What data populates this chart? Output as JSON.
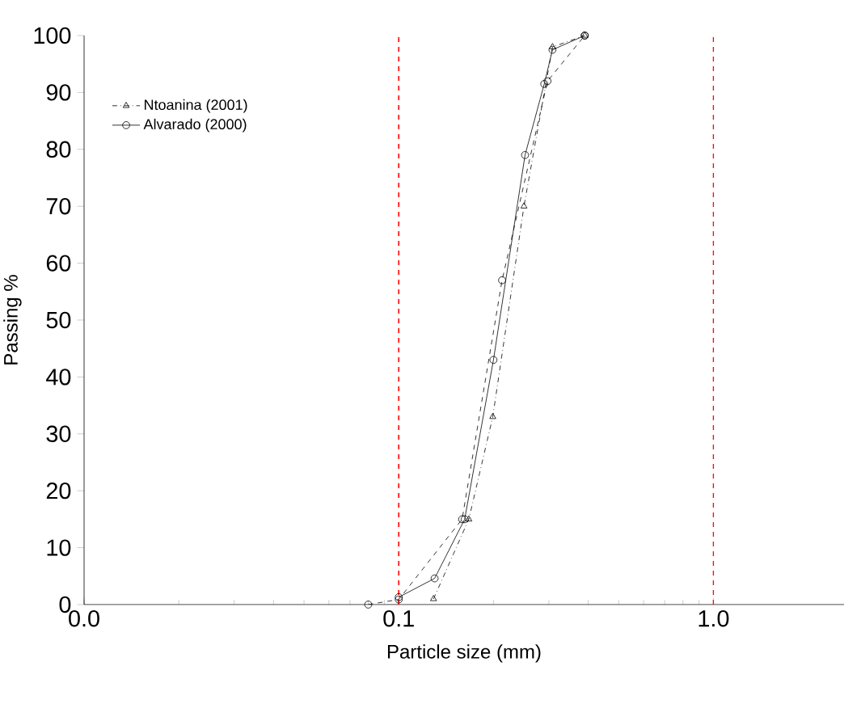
{
  "chart_data": {
    "type": "line",
    "xlabel": "Particle size (mm)",
    "ylabel": "Passing %",
    "log": "x",
    "xlim": [
      0.01,
      2.6
    ],
    "xticks": [
      {
        "value": 0.01,
        "label": "0.0"
      },
      {
        "value": 0.1,
        "label": "0.1"
      },
      {
        "value": 1,
        "label": "1.0"
      }
    ],
    "ylim": [
      0,
      100
    ],
    "yticks": [
      0,
      10,
      20,
      30,
      40,
      50,
      60,
      70,
      80,
      90,
      100
    ],
    "grid": false,
    "legend": "top left",
    "series": [
      {
        "name": "Ntoanina (2001)",
        "color": "#000000",
        "marker": "triangle",
        "line_style": "dashdot",
        "x": [
          0.129,
          0.167,
          0.199,
          0.25,
          0.308,
          0.39
        ],
        "values": [
          1,
          15,
          33,
          70,
          98,
          100
        ]
      },
      {
        "name": "Alvarado (2000)",
        "color": "#000000",
        "marker": "circle",
        "line_style": "solid",
        "x": [
          0.1,
          0.13,
          0.162,
          0.2,
          0.252,
          0.29,
          0.308,
          0.39
        ],
        "values": [
          1.3,
          4.6,
          15,
          43,
          79,
          91.5,
          97.5,
          100
        ]
      },
      {
        "color": "#000000",
        "marker": "circle",
        "line_style": "dashed",
        "x": [
          0.08,
          0.1,
          0.159,
          0.213,
          0.297,
          0.39
        ],
        "values": [
          0,
          0.9,
          15,
          57,
          92,
          100
        ]
      }
    ],
    "ref_lines": [
      {
        "axis": "x",
        "value": 0.1,
        "color": "#ff0000",
        "line_style": "dashed"
      },
      {
        "axis": "x",
        "value": 1,
        "color": "#ff0000",
        "line_style": "dashed"
      }
    ]
  }
}
